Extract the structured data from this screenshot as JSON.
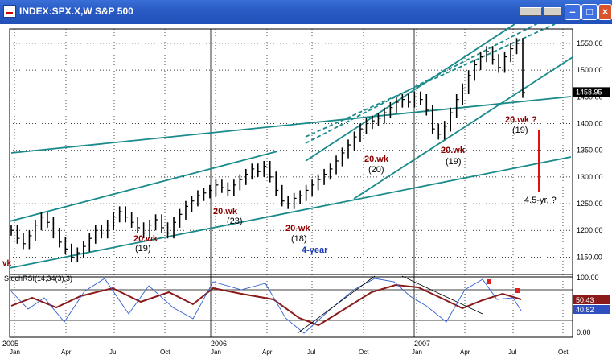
{
  "window": {
    "title": "INDEX:SPX.X,W  S&P 500",
    "icons": {
      "app": "chart-app-icon",
      "minimize": "minimize-icon",
      "maximize": "maximize-icon",
      "close": "close-icon"
    }
  },
  "price_panel": {
    "y_ticks": [
      "1550.00",
      "1500.00",
      "1450.00",
      "1400.00",
      "1350.00",
      "1300.00",
      "1250.00",
      "1200.00",
      "1150.00"
    ],
    "last_price": "1458.95",
    "left_stub": "vk"
  },
  "annotations": [
    {
      "text": "20.wk",
      "color": "#8b0000"
    },
    {
      "text": "(19)",
      "color": "#000000"
    },
    {
      "text": "20.wk",
      "color": "#8b0000"
    },
    {
      "text": "(23)",
      "color": "#000000"
    },
    {
      "text": "20-wk",
      "color": "#8b0000"
    },
    {
      "text": "(18)",
      "color": "#000000"
    },
    {
      "text": "4-year",
      "color": "#1a3ab8"
    },
    {
      "text": "20.wk",
      "color": "#8b0000"
    },
    {
      "text": "(20)",
      "color": "#000000"
    },
    {
      "text": "20.wk",
      "color": "#8b0000"
    },
    {
      "text": "(19)",
      "color": "#000000"
    },
    {
      "text": "20.wk ?",
      "color": "#8b0000"
    },
    {
      "text": "(19)",
      "color": "#000000"
    },
    {
      "text": "4.5-yr. ?",
      "color": "#000000"
    }
  ],
  "indicator_panel": {
    "label": "StochRSI(14,34(3),3)",
    "y_ticks": [
      "100.00",
      "0.00"
    ],
    "readout_1": "50.43",
    "readout_2": "40.82"
  },
  "x_axis": {
    "years": [
      "2005",
      "2006",
      "2007"
    ],
    "months": [
      "Jan",
      "Apr",
      "Jul",
      "Oct",
      "Jan",
      "Apr",
      "Jul",
      "Oct",
      "Jan",
      "Apr",
      "Jul",
      "Oct"
    ]
  },
  "chart_data": {
    "type": "line",
    "series": [
      {
        "values": [
          1200,
          1185,
          1175,
          1190,
          1210,
          1225,
          1215,
          1195,
          1178,
          1165,
          1150,
          1158,
          1170,
          1185,
          1200,
          1195,
          1210,
          1225,
          1235,
          1225,
          1215,
          1205,
          1195,
          1210,
          1220,
          1205,
          1195,
          1215,
          1230,
          1245,
          1255,
          1265,
          1270,
          1275,
          1285,
          1280,
          1275,
          1285,
          1295,
          1305,
          1315,
          1310,
          1320,
          1300,
          1275,
          1255,
          1250,
          1260,
          1265,
          1275,
          1285,
          1295,
          1305,
          1315,
          1330,
          1345,
          1360,
          1375,
          1390,
          1400,
          1405,
          1410,
          1420,
          1430,
          1440,
          1445,
          1440,
          1450,
          1445,
          1425,
          1390,
          1380,
          1395,
          1420,
          1445,
          1465,
          1490,
          1510,
          1525,
          1535,
          1520,
          1505,
          1525,
          1540,
          1550,
          1458
        ]
      }
    ],
    "xlabel": "",
    "ylabel": "",
    "ylim": [
      1125,
      1565
    ],
    "grid": true
  }
}
